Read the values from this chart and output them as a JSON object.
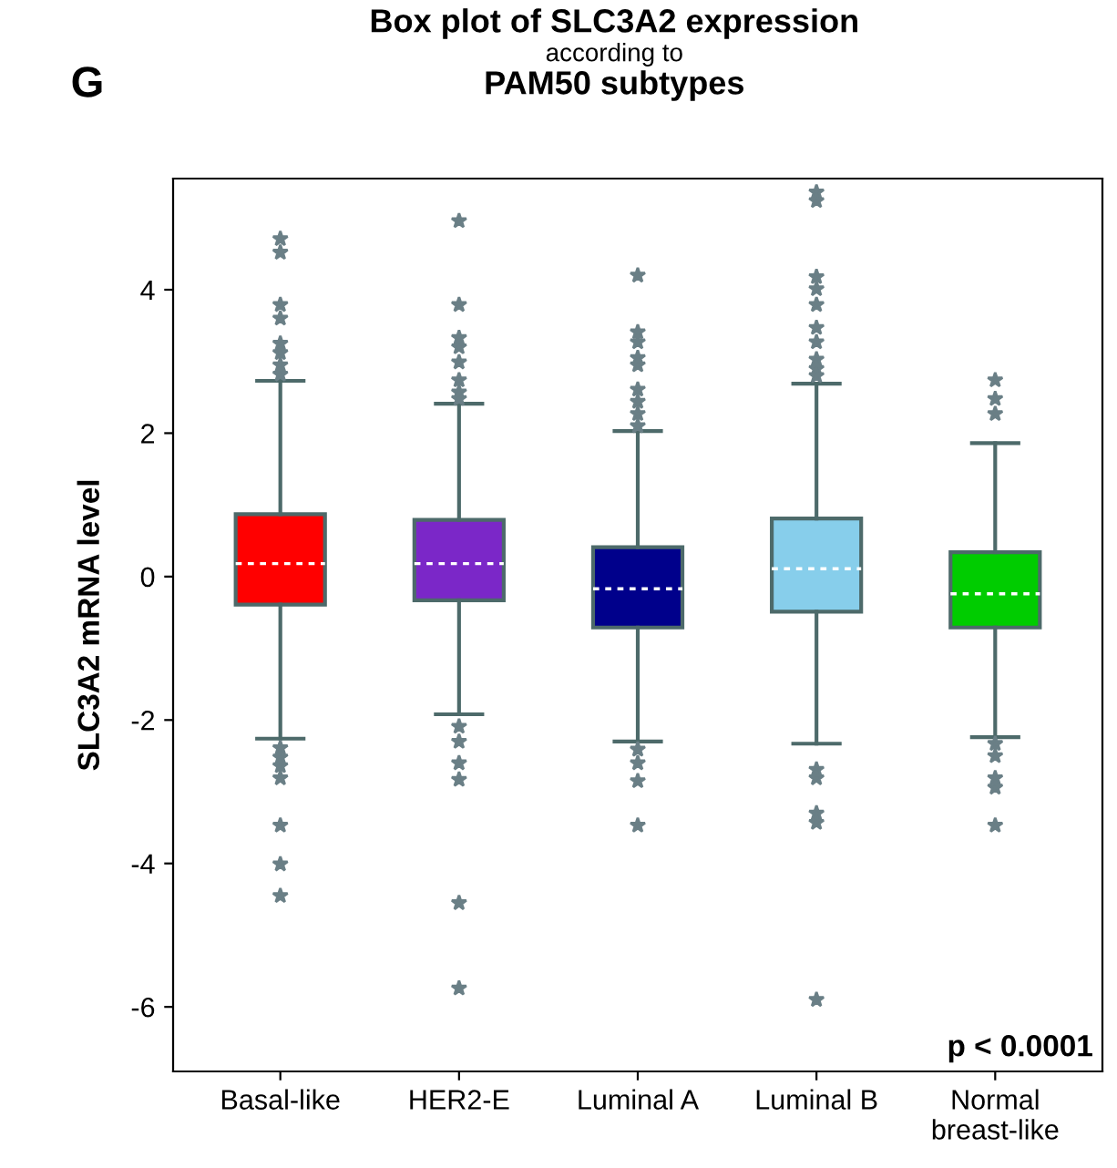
{
  "chart_data": {
    "type": "box",
    "title": "Box plot of SLC3A2 expression\naccording to\nPAM50 subtypes",
    "ylabel": "SLC3A2 mRNA level",
    "annotations": [
      "G",
      "p < 0.0001"
    ],
    "categories": [
      "Basal-like",
      "HER2-E",
      "Luminal A",
      "Luminal B",
      "Normal\nbreast-like"
    ],
    "colors": [
      "#ff0000",
      "#7b27c8",
      "#00008b",
      "#87ceeb",
      "#00cc00"
    ],
    "ylim": [
      -6.9,
      5.55
    ],
    "yticks": [
      -6,
      -4,
      -2,
      0,
      2,
      4
    ],
    "grid": false,
    "marker": "star",
    "boxes": [
      {
        "low": -2.26,
        "q1": -0.39,
        "median": 0.18,
        "q3": 0.87,
        "high": 2.73,
        "outliers": [
          4.71,
          4.52,
          3.79,
          3.6,
          3.25,
          3.12,
          2.95,
          2.82,
          -2.39,
          -2.52,
          -2.64,
          -2.81,
          -3.47,
          -4.01,
          -4.45
        ]
      },
      {
        "low": -1.92,
        "q1": -0.33,
        "median": 0.18,
        "q3": 0.79,
        "high": 2.41,
        "outliers": [
          4.96,
          3.79,
          3.33,
          3.2,
          2.99,
          2.74,
          2.57,
          2.48,
          -2.09,
          -2.3,
          -2.6,
          -2.83,
          -4.55,
          -5.74
        ]
      },
      {
        "low": -2.3,
        "q1": -0.71,
        "median": -0.17,
        "q3": 0.41,
        "high": 2.03,
        "outliers": [
          4.2,
          3.41,
          3.27,
          3.05,
          2.95,
          2.61,
          2.44,
          2.27,
          2.1,
          -2.41,
          -2.6,
          -2.85,
          -3.47
        ]
      },
      {
        "low": -2.33,
        "q1": -0.49,
        "median": 0.11,
        "q3": 0.81,
        "high": 2.69,
        "outliers": [
          5.36,
          5.24,
          4.18,
          4.01,
          3.79,
          3.47,
          3.27,
          3.03,
          2.9,
          2.8,
          -2.69,
          -2.81,
          -3.3,
          -3.43,
          -5.9
        ]
      },
      {
        "low": -2.24,
        "q1": -0.71,
        "median": -0.24,
        "q3": 0.34,
        "high": 1.86,
        "outliers": [
          2.74,
          2.48,
          2.27,
          -2.33,
          -2.5,
          -2.81,
          -2.94,
          -3.47
        ]
      }
    ]
  }
}
